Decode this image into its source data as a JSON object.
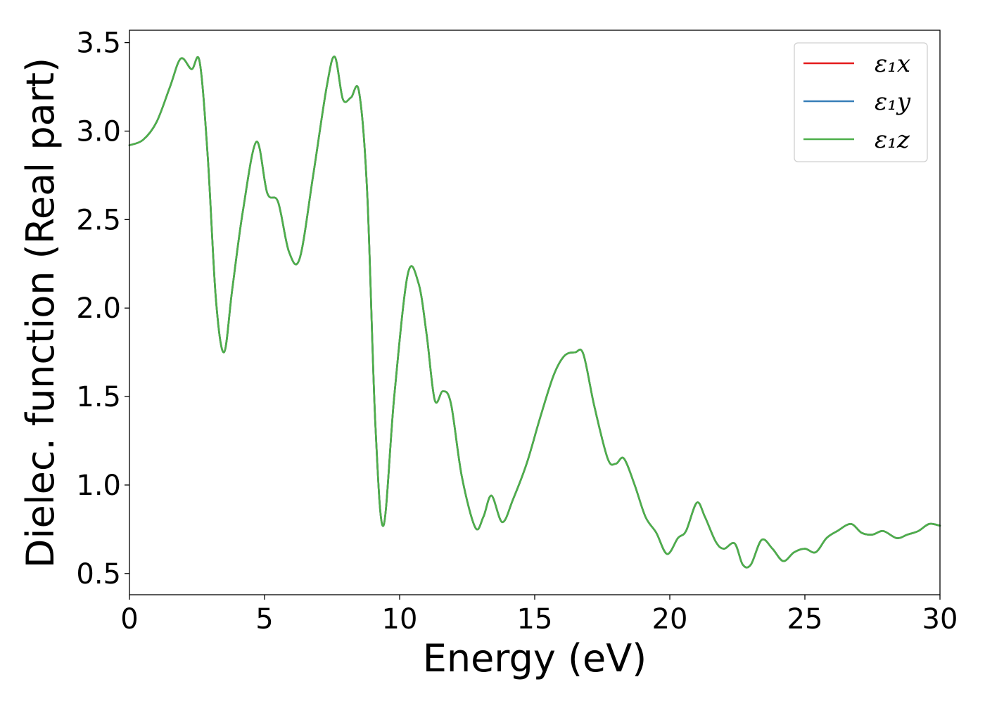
{
  "chart_data": {
    "type": "line",
    "title": "",
    "xlabel": "Energy (eV)",
    "ylabel": "Dielec. function (Real part)",
    "xlim": [
      0,
      30
    ],
    "ylim": [
      0.38,
      3.57
    ],
    "xticks": [
      0,
      5,
      10,
      15,
      20,
      25,
      30
    ],
    "yticks": [
      0.5,
      1.0,
      1.5,
      2.0,
      2.5,
      3.0,
      3.5
    ],
    "ytick_labels": [
      "0.5",
      "1.0",
      "1.5",
      "2.0",
      "2.5",
      "3.0",
      "3.5"
    ],
    "grid": false,
    "legend_position": "top-right",
    "series": [
      {
        "name": "ε₁x",
        "color": "#e41a1c",
        "x": [
          0,
          0.5,
          1.0,
          1.5,
          1.9,
          2.3,
          2.6,
          2.9,
          3.2,
          3.5,
          3.8,
          4.2,
          4.7,
          5.1,
          5.5,
          5.9,
          6.3,
          6.8,
          7.3,
          7.6,
          7.9,
          8.2,
          8.5,
          8.8,
          9.1,
          9.4,
          9.8,
          10.3,
          10.7,
          11.0,
          11.3,
          11.6,
          11.9,
          12.3,
          12.8,
          13.1,
          13.4,
          13.8,
          14.2,
          14.7,
          15.2,
          15.7,
          16.1,
          16.5,
          16.8,
          17.2,
          17.7,
          18.0,
          18.3,
          18.7,
          19.1,
          19.5,
          19.9,
          20.3,
          20.6,
          21.0,
          21.3,
          21.7,
          22.0,
          22.4,
          22.7,
          23.0,
          23.4,
          23.8,
          24.2,
          24.6,
          25.0,
          25.4,
          25.8,
          26.2,
          26.7,
          27.1,
          27.5,
          27.9,
          28.4,
          28.8,
          29.2,
          29.6,
          30.0
        ],
        "y": [
          2.92,
          2.95,
          3.05,
          3.25,
          3.41,
          3.35,
          3.39,
          2.85,
          2.05,
          1.75,
          2.1,
          2.55,
          2.94,
          2.65,
          2.6,
          2.32,
          2.28,
          2.75,
          3.25,
          3.42,
          3.18,
          3.19,
          3.22,
          2.65,
          1.35,
          0.77,
          1.5,
          2.19,
          2.14,
          1.85,
          1.48,
          1.53,
          1.46,
          1.05,
          0.76,
          0.82,
          0.94,
          0.79,
          0.92,
          1.12,
          1.38,
          1.62,
          1.73,
          1.75,
          1.74,
          1.45,
          1.15,
          1.12,
          1.15,
          1.0,
          0.82,
          0.73,
          0.61,
          0.7,
          0.74,
          0.9,
          0.82,
          0.68,
          0.64,
          0.67,
          0.55,
          0.55,
          0.69,
          0.64,
          0.57,
          0.62,
          0.64,
          0.62,
          0.7,
          0.74,
          0.78,
          0.73,
          0.72,
          0.74,
          0.7,
          0.72,
          0.74,
          0.78,
          0.77
        ]
      },
      {
        "name": "ε₁y",
        "color": "#377eb8",
        "x": [
          0,
          0.5,
          1.0,
          1.5,
          1.9,
          2.3,
          2.6,
          2.9,
          3.2,
          3.5,
          3.8,
          4.2,
          4.7,
          5.1,
          5.5,
          5.9,
          6.3,
          6.8,
          7.3,
          7.6,
          7.9,
          8.2,
          8.5,
          8.8,
          9.1,
          9.4,
          9.8,
          10.3,
          10.7,
          11.0,
          11.3,
          11.6,
          11.9,
          12.3,
          12.8,
          13.1,
          13.4,
          13.8,
          14.2,
          14.7,
          15.2,
          15.7,
          16.1,
          16.5,
          16.8,
          17.2,
          17.7,
          18.0,
          18.3,
          18.7,
          19.1,
          19.5,
          19.9,
          20.3,
          20.6,
          21.0,
          21.3,
          21.7,
          22.0,
          22.4,
          22.7,
          23.0,
          23.4,
          23.8,
          24.2,
          24.6,
          25.0,
          25.4,
          25.8,
          26.2,
          26.7,
          27.1,
          27.5,
          27.9,
          28.4,
          28.8,
          29.2,
          29.6,
          30.0
        ],
        "y": [
          2.92,
          2.95,
          3.05,
          3.25,
          3.41,
          3.35,
          3.39,
          2.85,
          2.05,
          1.75,
          2.1,
          2.55,
          2.94,
          2.65,
          2.6,
          2.32,
          2.28,
          2.75,
          3.25,
          3.42,
          3.18,
          3.19,
          3.22,
          2.65,
          1.35,
          0.77,
          1.5,
          2.19,
          2.14,
          1.85,
          1.48,
          1.53,
          1.46,
          1.05,
          0.76,
          0.82,
          0.94,
          0.79,
          0.92,
          1.12,
          1.38,
          1.62,
          1.73,
          1.75,
          1.74,
          1.45,
          1.15,
          1.12,
          1.15,
          1.0,
          0.82,
          0.73,
          0.61,
          0.7,
          0.74,
          0.9,
          0.82,
          0.68,
          0.64,
          0.67,
          0.55,
          0.55,
          0.69,
          0.64,
          0.57,
          0.62,
          0.64,
          0.62,
          0.7,
          0.74,
          0.78,
          0.73,
          0.72,
          0.74,
          0.7,
          0.72,
          0.74,
          0.78,
          0.77
        ]
      },
      {
        "name": "ε₁z",
        "color": "#4daf4a",
        "x": [
          0,
          0.5,
          1.0,
          1.5,
          1.9,
          2.3,
          2.6,
          2.9,
          3.2,
          3.5,
          3.8,
          4.2,
          4.7,
          5.1,
          5.5,
          5.9,
          6.3,
          6.8,
          7.3,
          7.6,
          7.9,
          8.2,
          8.5,
          8.8,
          9.1,
          9.4,
          9.8,
          10.3,
          10.7,
          11.0,
          11.3,
          11.6,
          11.9,
          12.3,
          12.8,
          13.1,
          13.4,
          13.8,
          14.2,
          14.7,
          15.2,
          15.7,
          16.1,
          16.5,
          16.8,
          17.2,
          17.7,
          18.0,
          18.3,
          18.7,
          19.1,
          19.5,
          19.9,
          20.3,
          20.6,
          21.0,
          21.3,
          21.7,
          22.0,
          22.4,
          22.7,
          23.0,
          23.4,
          23.8,
          24.2,
          24.6,
          25.0,
          25.4,
          25.8,
          26.2,
          26.7,
          27.1,
          27.5,
          27.9,
          28.4,
          28.8,
          29.2,
          29.6,
          30.0
        ],
        "y": [
          2.92,
          2.95,
          3.05,
          3.25,
          3.41,
          3.35,
          3.39,
          2.85,
          2.05,
          1.75,
          2.1,
          2.55,
          2.94,
          2.65,
          2.6,
          2.32,
          2.28,
          2.75,
          3.25,
          3.42,
          3.18,
          3.19,
          3.22,
          2.65,
          1.35,
          0.77,
          1.5,
          2.19,
          2.14,
          1.85,
          1.48,
          1.53,
          1.46,
          1.05,
          0.76,
          0.82,
          0.94,
          0.79,
          0.92,
          1.12,
          1.38,
          1.62,
          1.73,
          1.75,
          1.74,
          1.45,
          1.15,
          1.12,
          1.15,
          1.0,
          0.82,
          0.73,
          0.61,
          0.7,
          0.74,
          0.9,
          0.82,
          0.68,
          0.64,
          0.67,
          0.55,
          0.55,
          0.69,
          0.64,
          0.57,
          0.62,
          0.64,
          0.62,
          0.7,
          0.74,
          0.78,
          0.73,
          0.72,
          0.74,
          0.7,
          0.72,
          0.74,
          0.78,
          0.77
        ]
      }
    ]
  }
}
